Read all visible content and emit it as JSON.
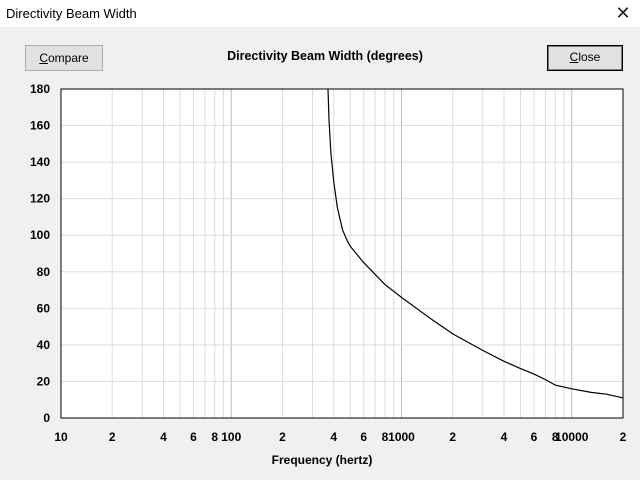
{
  "window": {
    "title": "Directivity Beam Width",
    "close_glyph": "✕"
  },
  "buttons": {
    "compare_ul": "C",
    "compare_rest": "ompare",
    "close_ul": "C",
    "close_rest": "lose"
  },
  "chart_data": {
    "type": "line",
    "title": "Directivity Beam Width (degrees)",
    "xlabel": "Frequency (hertz)",
    "ylabel": "",
    "xscale": "log",
    "xlim": [
      10,
      20000
    ],
    "ylim": [
      0,
      180
    ],
    "grid": true,
    "y_ticks": [
      0,
      20,
      40,
      60,
      80,
      100,
      120,
      140,
      160,
      180
    ],
    "x_tick_values": [
      10,
      20,
      40,
      60,
      80,
      100,
      200,
      400,
      600,
      800,
      1000,
      2000,
      4000,
      6000,
      8000,
      10000,
      20000
    ],
    "x_tick_labels": [
      "10",
      "2",
      "4",
      "6",
      "8",
      "100",
      "2",
      "4",
      "6",
      "8",
      "1000",
      "2",
      "4",
      "6",
      "8",
      "10000",
      "2"
    ],
    "series": [
      {
        "x": [
          370,
          375,
          385,
          400,
          420,
          450,
          480,
          500,
          600,
          800,
          1000,
          1500,
          2000,
          3000,
          4000,
          5000,
          6000,
          7000,
          8000,
          10000,
          13000,
          16000,
          20000
        ],
        "y": [
          180,
          163,
          145,
          129,
          115,
          103,
          97,
          94,
          85,
          73,
          66,
          54,
          46,
          37,
          31,
          27,
          24,
          21,
          18,
          16,
          14,
          13,
          11
        ]
      }
    ]
  }
}
